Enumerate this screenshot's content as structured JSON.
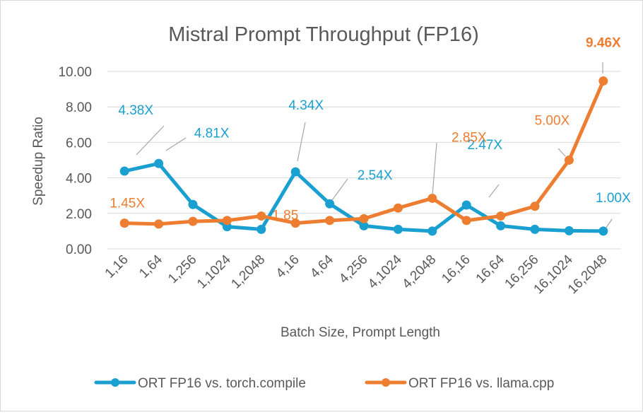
{
  "chart_data": {
    "type": "line",
    "title": "Mistral Prompt Throughput (FP16)",
    "xlabel": "Batch Size, Prompt Length",
    "ylabel": "Speedup Ratio",
    "ylim": [
      0,
      10
    ],
    "yticks": [
      "0.00",
      "2.00",
      "4.00",
      "6.00",
      "8.00",
      "10.00"
    ],
    "grid": true,
    "legend": "bottom",
    "categories": [
      "1,16",
      "1,64",
      "1,256",
      "1,1024",
      "1,2048",
      "4,16",
      "4,64",
      "4,256",
      "4,1024",
      "4,2048",
      "16,16",
      "16,64",
      "16,256",
      "16,1024",
      "16,2048"
    ],
    "series": [
      {
        "name": "ORT FP16 vs. torch.compile",
        "color": "#1aa0d0",
        "values": [
          4.38,
          4.81,
          2.5,
          1.25,
          1.1,
          4.34,
          2.54,
          1.3,
          1.1,
          1.0,
          2.47,
          1.3,
          1.1,
          1.02,
          1.0
        ],
        "labels": [
          {
            "index": 0,
            "text": "4.38X"
          },
          {
            "index": 1,
            "text": "4.81X"
          },
          {
            "index": 5,
            "text": "4.34X"
          },
          {
            "index": 6,
            "text": "2.54X"
          },
          {
            "index": 10,
            "text": "2.47X"
          },
          {
            "index": 14,
            "text": "1.00X"
          }
        ]
      },
      {
        "name": "ORT FP16 vs. llama.cpp",
        "color": "#ed7d31",
        "values": [
          1.45,
          1.4,
          1.55,
          1.6,
          1.85,
          1.45,
          1.6,
          1.7,
          2.3,
          2.85,
          1.6,
          1.85,
          2.4,
          5.0,
          9.46
        ],
        "labels": [
          {
            "index": 0,
            "text": "1.45X"
          },
          {
            "index": 4,
            "text": "1.85"
          },
          {
            "index": 9,
            "text": "2.85X"
          },
          {
            "index": 13,
            "text": "5.00X"
          },
          {
            "index": 14,
            "text": "9.46X"
          }
        ]
      }
    ]
  }
}
